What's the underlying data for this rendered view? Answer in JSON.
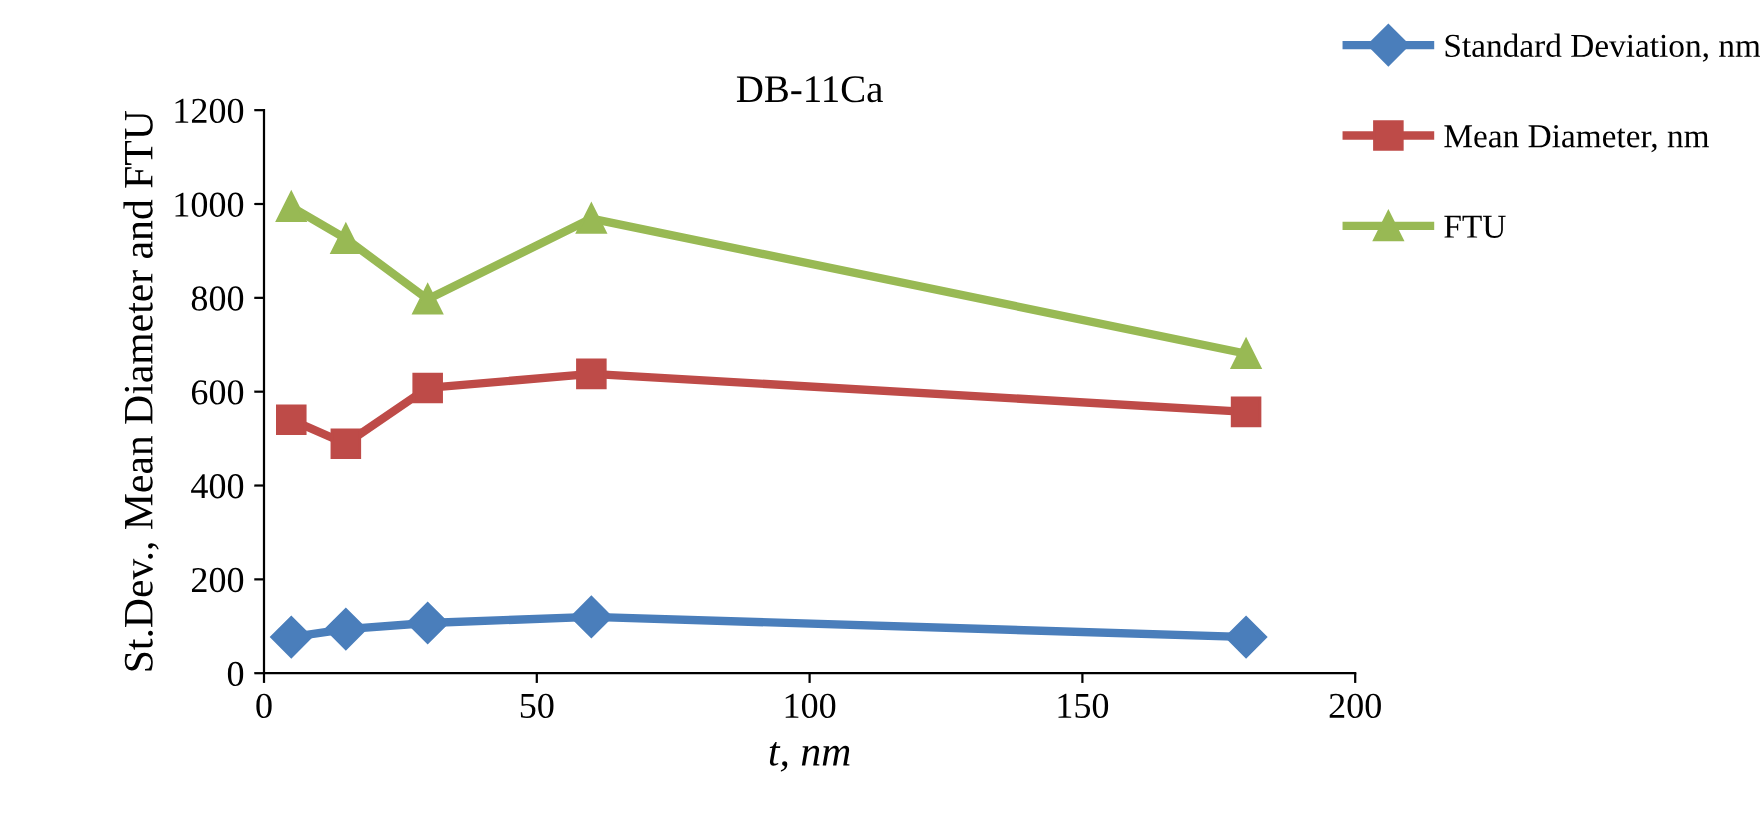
{
  "chart_data": {
    "type": "line",
    "title": "DB-11Ca",
    "xlabel": "t, nm",
    "ylabel": "St.Dev., Mean Diameter and FTU",
    "x": [
      5,
      15,
      30,
      60,
      180
    ],
    "series": [
      {
        "name": "Standard Deviation, nm",
        "color": "#4a7ebb",
        "marker": "diamond",
        "values": [
          77,
          94,
          107,
          120,
          77
        ]
      },
      {
        "name": "Mean Diameter, nm",
        "color": "#be4b48",
        "marker": "square",
        "values": [
          540,
          489,
          608,
          638,
          557
        ]
      },
      {
        "name": "FTU",
        "color": "#98b954",
        "marker": "triangle",
        "values": [
          994,
          926,
          797,
          969,
          681
        ]
      }
    ],
    "xlim": [
      0,
      200
    ],
    "xticks": [
      0,
      50,
      100,
      150,
      200
    ],
    "ylim": [
      0,
      1200
    ],
    "yticks": [
      0,
      200,
      400,
      600,
      800,
      1000,
      1200
    ],
    "grid": false,
    "legend": "top right",
    "line_style": "solid"
  }
}
